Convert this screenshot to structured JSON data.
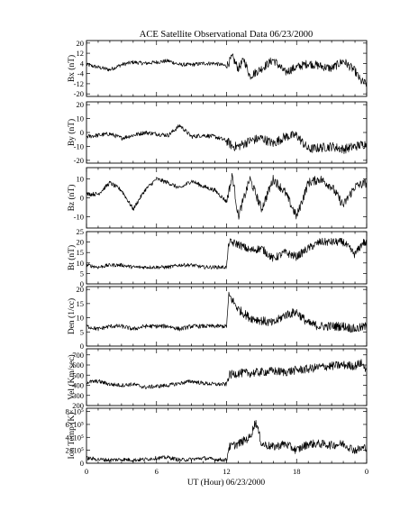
{
  "chart_data": {
    "type": "line",
    "title": "ACE Satellite Observational Data   06/23/2000",
    "xlabel": "UT (Hour)   06/23/2000",
    "x_tick_labels": [
      "0",
      "6",
      "12",
      "18",
      "0"
    ],
    "xlim": [
      0,
      24
    ],
    "panels": [
      {
        "ylabel": "Bx (nT)",
        "ylim": [
          -22,
          22
        ],
        "y_ticks": [
          20,
          12,
          4,
          -4,
          -12,
          -20
        ],
        "y_tick_labels": [
          "20",
          "12",
          "4",
          "-4",
          "-12",
          "-20"
        ],
        "x": [
          0,
          1,
          2,
          3,
          4,
          5,
          6,
          7,
          8,
          9,
          10,
          11,
          12,
          12.5,
          13,
          13.5,
          14,
          15,
          16,
          17,
          18,
          19,
          20,
          21,
          22,
          23,
          23.5,
          24
        ],
        "values": [
          3,
          1,
          -1,
          3,
          5,
          4,
          5,
          6,
          3,
          3,
          4,
          4,
          2,
          9,
          0,
          7,
          -6,
          0,
          7,
          -3,
          1,
          4,
          2,
          0,
          6,
          -2,
          -10,
          -12
        ]
      },
      {
        "ylabel": "By (nT)",
        "ylim": [
          -22,
          22
        ],
        "y_ticks": [
          20,
          10,
          0,
          -10,
          -20
        ],
        "y_tick_labels": [
          "20",
          "10",
          "0",
          "-10",
          "-20"
        ],
        "x": [
          0,
          1,
          2,
          3,
          4,
          5,
          6,
          7,
          8,
          9,
          10,
          11,
          12,
          12.5,
          13,
          14,
          15,
          16,
          17,
          18,
          19,
          20,
          21,
          22,
          23,
          24
        ],
        "values": [
          -3,
          -2,
          -1,
          -4,
          -2,
          0,
          -1,
          -2,
          5,
          -3,
          -2,
          -3,
          -6,
          -10,
          -10,
          -6,
          -4,
          -8,
          -3,
          -2,
          -12,
          -11,
          -10,
          -12,
          -10,
          -8
        ]
      },
      {
        "ylabel": "Bz (nT)",
        "ylim": [
          -16,
          16
        ],
        "y_ticks": [
          10,
          0,
          -10
        ],
        "y_tick_labels": [
          "10",
          "0",
          "-10"
        ],
        "x": [
          0,
          1,
          2,
          3,
          4,
          5,
          6,
          7,
          8,
          9,
          10,
          11,
          12,
          12.5,
          13,
          14,
          15,
          16,
          17,
          18,
          19,
          20,
          21,
          22,
          23,
          24
        ],
        "values": [
          2,
          2,
          8,
          4,
          -6,
          4,
          10,
          8,
          5,
          9,
          6,
          4,
          -2,
          12,
          -10,
          10,
          -6,
          10,
          3,
          -10,
          8,
          10,
          6,
          -4,
          6,
          8
        ]
      },
      {
        "ylabel": "Bt (nT)",
        "ylim": [
          0,
          25
        ],
        "y_ticks": [
          25,
          20,
          15,
          10,
          5,
          0
        ],
        "y_tick_labels": [
          "25",
          "20",
          "15",
          "10",
          "5",
          "0"
        ],
        "x": [
          0,
          1,
          2,
          3,
          4,
          5,
          6,
          7,
          8,
          9,
          10,
          11,
          12,
          12.2,
          13,
          14,
          15,
          16,
          17,
          18,
          19,
          20,
          21,
          22,
          23,
          23.7,
          24
        ],
        "values": [
          9,
          8,
          9,
          9,
          8,
          8,
          8,
          8,
          9,
          9,
          8,
          8,
          8,
          20,
          19,
          16,
          17,
          12,
          15,
          13,
          17,
          20,
          20,
          20,
          14,
          20,
          19
        ]
      },
      {
        "ylabel": "Den (1/cc)",
        "ylim": [
          0,
          21
        ],
        "y_ticks": [
          20,
          15,
          10,
          5,
          0
        ],
        "y_tick_labels": [
          "20",
          "15",
          "10",
          "5",
          "0"
        ],
        "x": [
          0,
          1,
          2,
          3,
          4,
          5,
          6,
          7,
          8,
          9,
          10,
          11,
          12,
          12.2,
          13,
          14,
          15,
          16,
          17,
          18,
          19,
          20,
          21,
          22,
          23,
          24
        ],
        "values": [
          7,
          6,
          7,
          7,
          6,
          7,
          7,
          7,
          6,
          7,
          7,
          7,
          7,
          18,
          13,
          10,
          9,
          8,
          11,
          12,
          8,
          7,
          7,
          7,
          6,
          7
        ]
      },
      {
        "ylabel": "Vel (Km/sec)",
        "ylim": [
          200,
          760
        ],
        "y_ticks": [
          700,
          600,
          500,
          400,
          300,
          200
        ],
        "y_tick_labels": [
          "700",
          "600",
          "500",
          "400",
          "300",
          "200"
        ],
        "x": [
          0,
          1,
          2,
          3,
          4,
          5,
          6,
          7,
          8,
          9,
          10,
          11,
          12,
          12.2,
          13,
          14,
          15,
          16,
          17,
          18,
          19,
          20,
          21,
          22,
          23,
          23.5,
          24
        ],
        "values": [
          430,
          440,
          410,
          400,
          410,
          380,
          390,
          400,
          420,
          440,
          420,
          410,
          410,
          500,
          520,
          520,
          530,
          540,
          530,
          550,
          560,
          580,
          590,
          600,
          590,
          620,
          560
        ]
      },
      {
        "ylabel": "Ion Temp (K)",
        "ylim": [
          0,
          8.5
        ],
        "y_ticks": [
          8,
          6,
          4,
          2,
          0
        ],
        "y_tick_labels": [
          "8×10⁵",
          "6×10⁵",
          "4×10⁵",
          "2×10⁵",
          "0"
        ],
        "x": [
          0,
          1,
          2,
          3,
          4,
          5,
          6,
          7,
          8,
          9,
          10,
          11,
          12,
          12.2,
          13,
          14,
          14.5,
          15,
          16,
          17,
          18,
          19,
          20,
          21,
          22,
          23,
          24
        ],
        "values": [
          0.8,
          0.6,
          0.5,
          0.6,
          0.5,
          0.6,
          0.8,
          0.9,
          0.5,
          0.6,
          0.8,
          0.6,
          0.5,
          2.5,
          3,
          4,
          6.5,
          3,
          2.5,
          3,
          2,
          3,
          3,
          2.8,
          3,
          2,
          2.5
        ]
      }
    ]
  }
}
